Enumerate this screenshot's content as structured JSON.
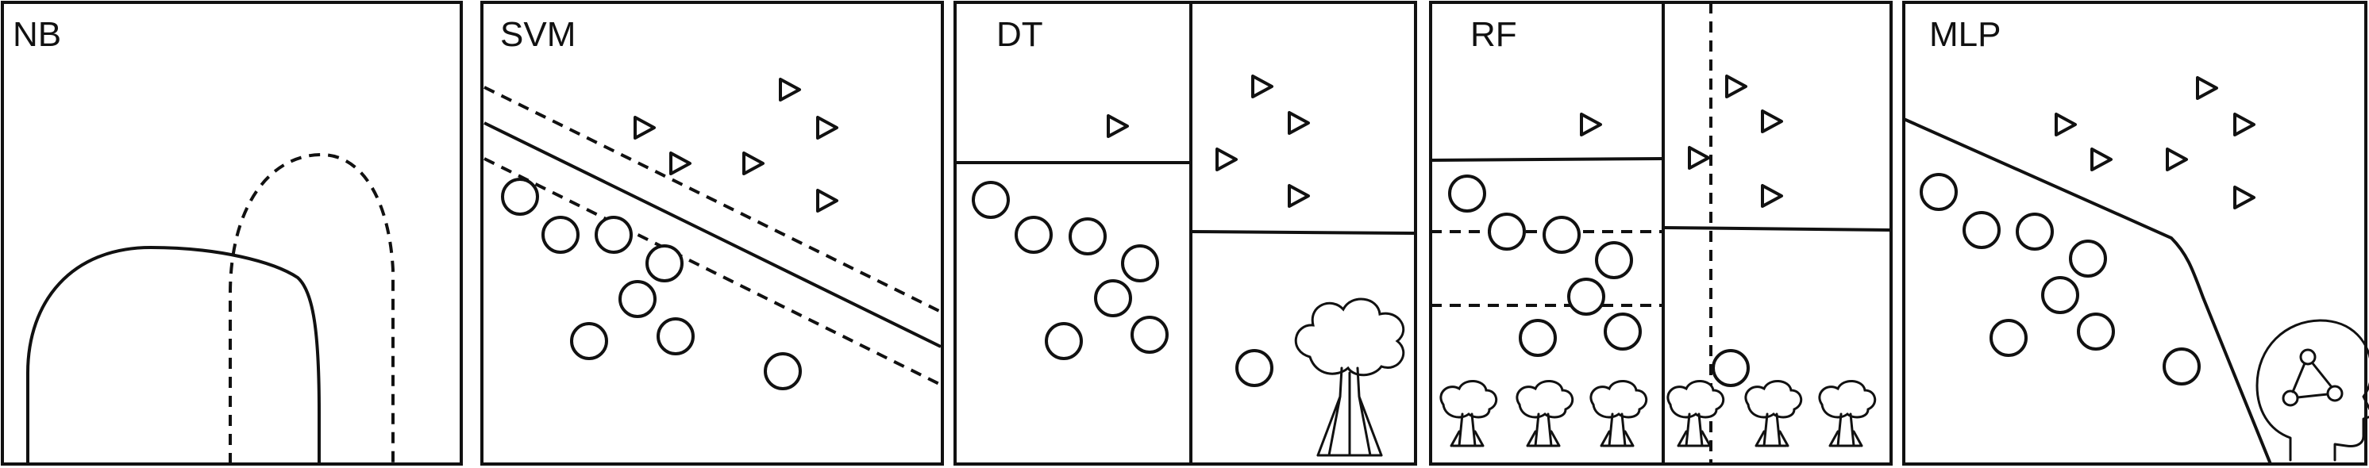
{
  "panels": [
    {
      "key": "nb",
      "title": "NB"
    },
    {
      "key": "svm",
      "title": "SVM"
    },
    {
      "key": "dt",
      "title": "DT"
    },
    {
      "key": "rf",
      "title": "RF"
    },
    {
      "key": "mlp",
      "title": "MLP"
    }
  ],
  "icons": {
    "dt": "tree-icon",
    "rf": "small-tree-icon",
    "mlp": "head-network-icon"
  },
  "colors": {
    "stroke": "#111111",
    "background": "#ffffff"
  }
}
